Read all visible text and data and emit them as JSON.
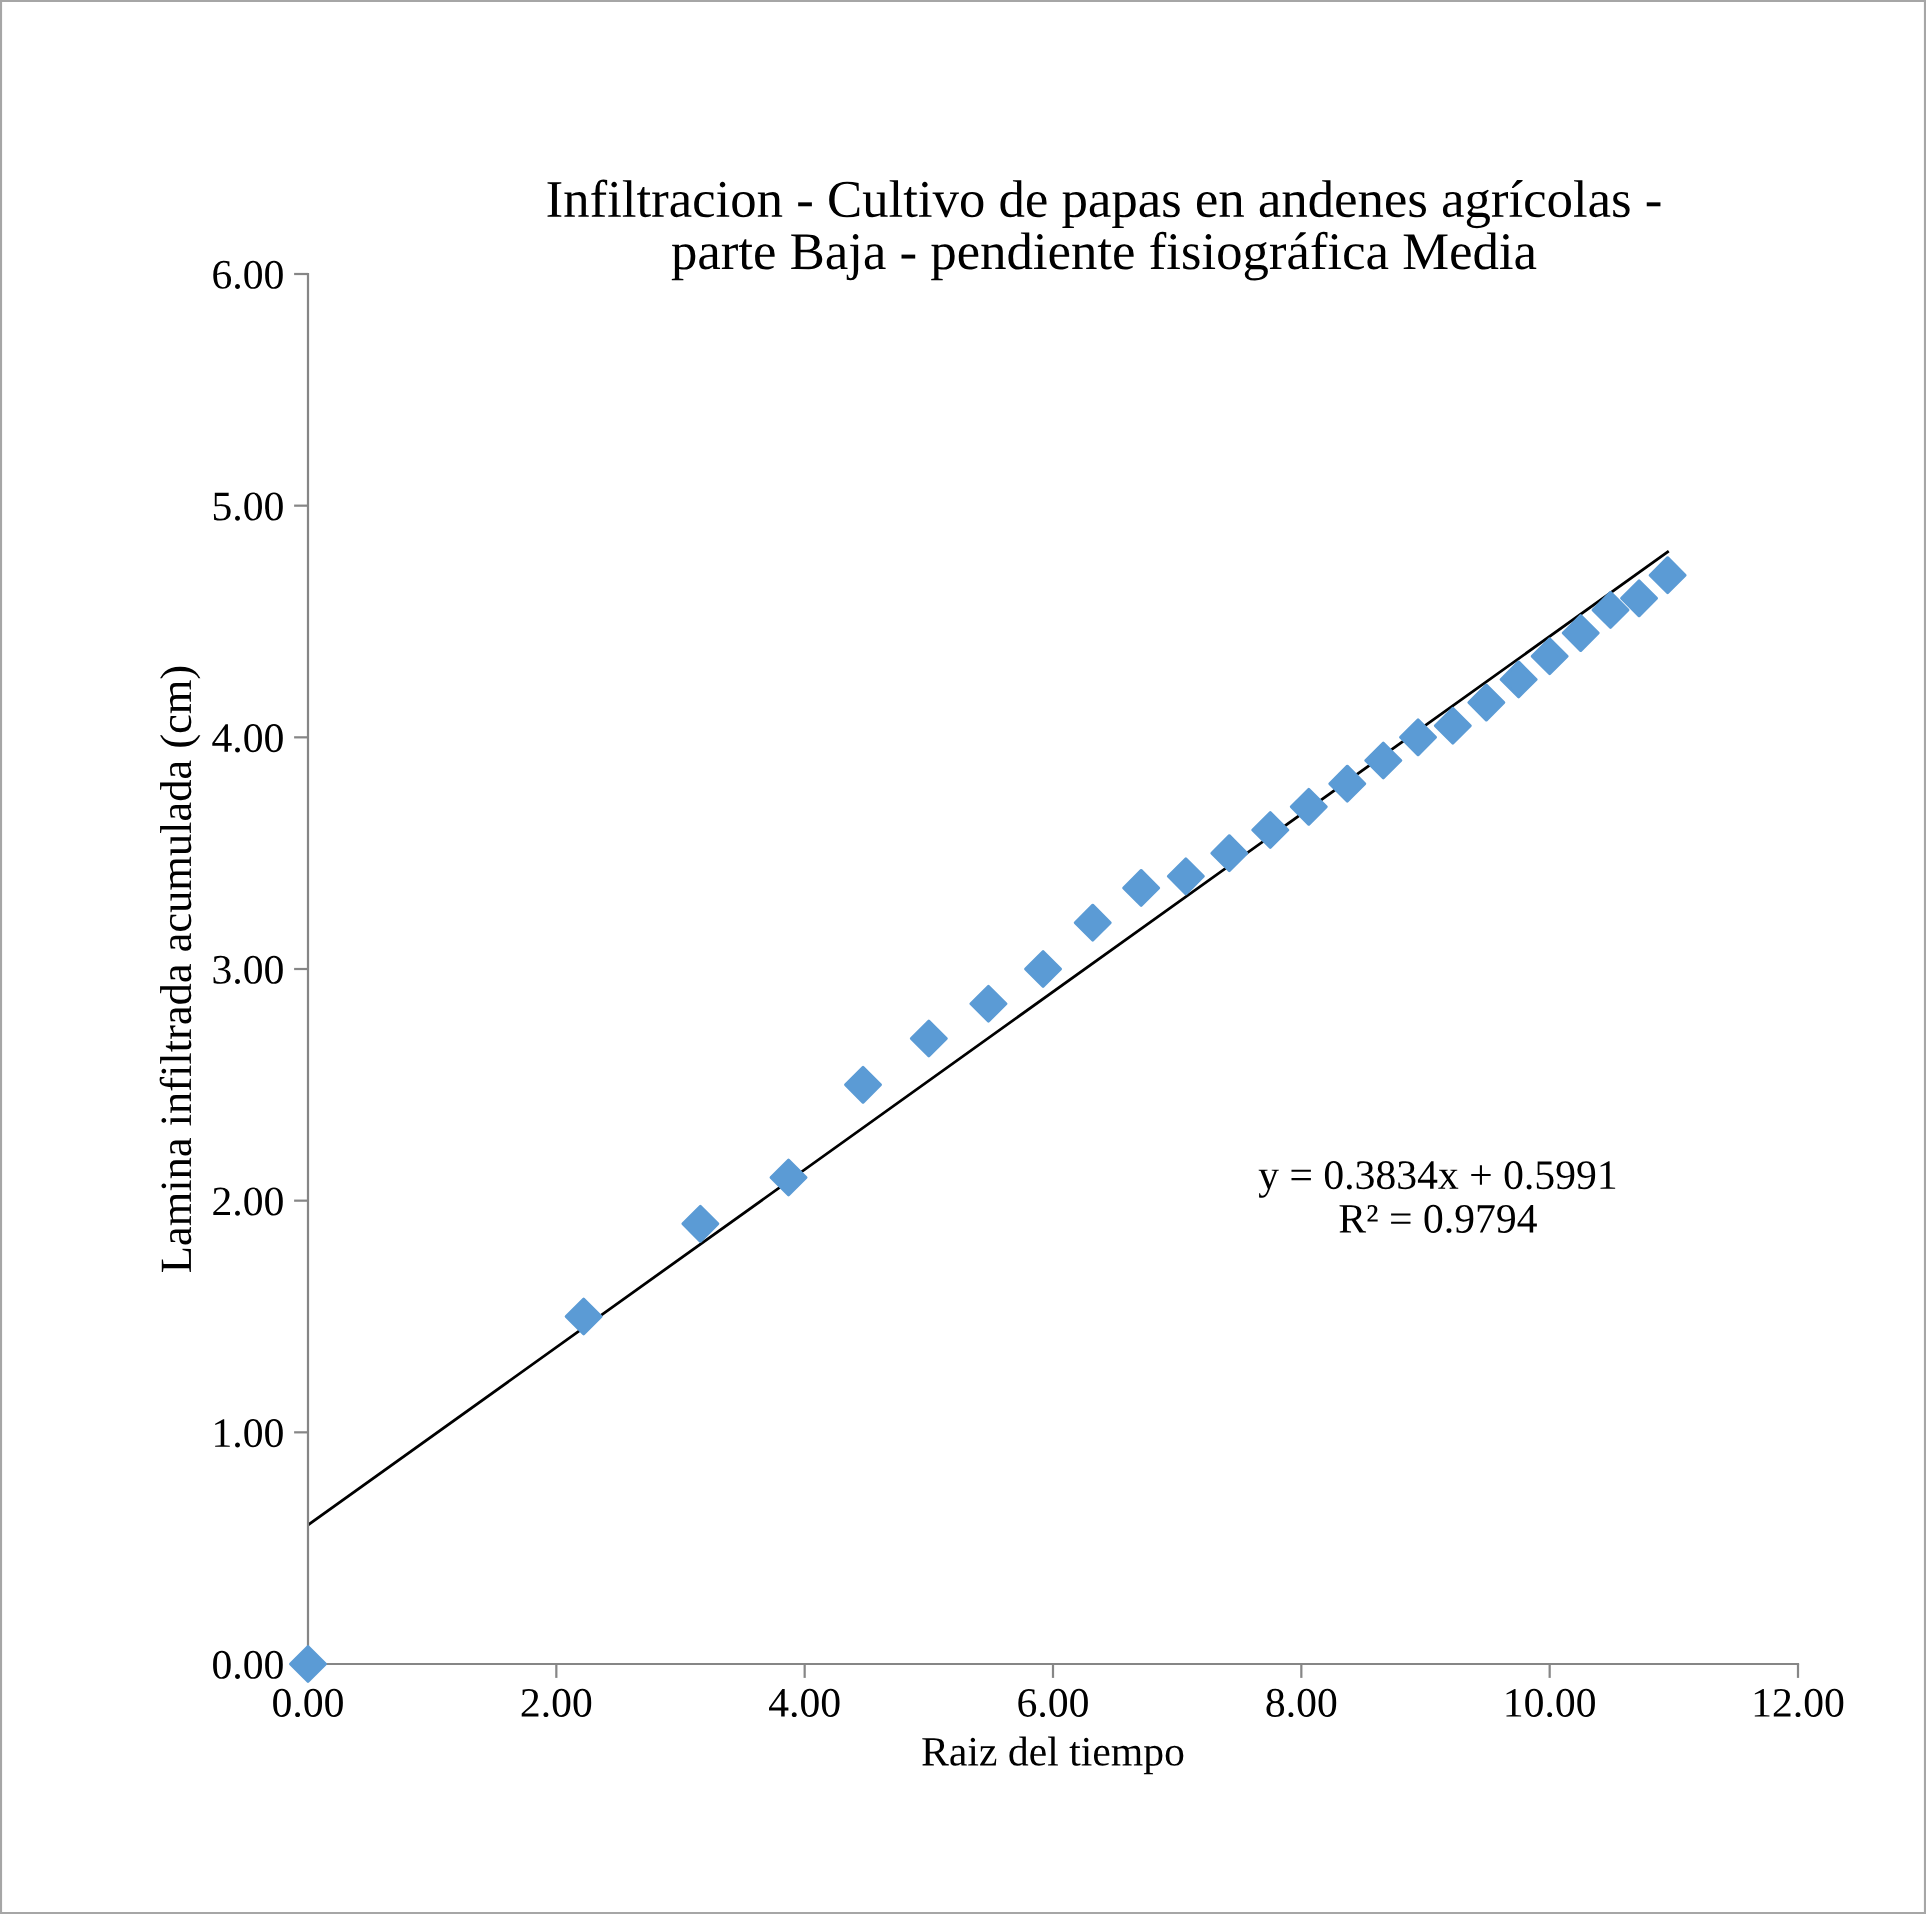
{
  "chart_data": {
    "type": "scatter",
    "title": "Infiltracion - Cultivo de papas en andenes agrícolas -\nparte Baja - pendiente fisiográfica Media",
    "xlabel": "Raiz del tiempo",
    "ylabel": "Lamina infiltrada acumulada (cm)",
    "series": [
      {
        "color": "#5b9bd5",
        "marker": "diamond",
        "x": [
          0,
          2.22,
          3.16,
          3.87,
          4.47,
          5.0,
          5.48,
          5.92,
          6.32,
          6.71,
          7.07,
          7.42,
          7.75,
          8.06,
          8.37,
          8.66,
          8.94,
          9.22,
          9.49,
          9.75,
          10.0,
          10.25,
          10.49,
          10.72,
          10.95
        ],
        "values": [
          0,
          1.5,
          1.9,
          2.1,
          2.5,
          2.7,
          2.85,
          3.0,
          3.2,
          3.35,
          3.4,
          3.5,
          3.6,
          3.7,
          3.8,
          3.9,
          4.0,
          4.05,
          4.15,
          4.25,
          4.35,
          4.45,
          4.55,
          4.6,
          4.7
        ]
      },
      {
        "type": "line",
        "color": "#000000",
        "marker": "none",
        "x": [
          0,
          10.95
        ],
        "values": [
          0.6,
          4.8
        ]
      }
    ],
    "annotations": [
      "y = 0.3834x + 0.5991\nR² = 0.9794"
    ],
    "xlim": [
      0,
      12
    ],
    "xticks": [
      {
        "value": 0,
        "label": "0.00"
      },
      {
        "value": 2,
        "label": "2.00"
      },
      {
        "value": 4,
        "label": "4.00"
      },
      {
        "value": 6,
        "label": "6.00"
      },
      {
        "value": 8,
        "label": "8.00"
      },
      {
        "value": 10,
        "label": "10.00"
      },
      {
        "value": 12,
        "label": "12.00"
      }
    ],
    "ylim": [
      0,
      6
    ],
    "yticks": [
      {
        "value": 0,
        "label": "0.00"
      },
      {
        "value": 1,
        "label": "1.00"
      },
      {
        "value": 2,
        "label": "2.00"
      },
      {
        "value": 3,
        "label": "3.00"
      },
      {
        "value": 4,
        "label": "4.00"
      },
      {
        "value": 5,
        "label": "5.00"
      },
      {
        "value": 6,
        "label": "6.00"
      }
    ],
    "grid": false,
    "legend": false
  }
}
